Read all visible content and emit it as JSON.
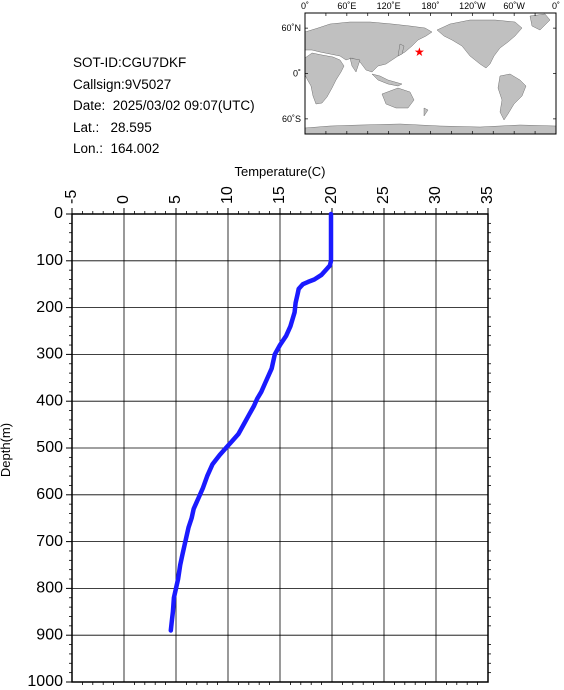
{
  "info": {
    "sot_id": "SOT-ID:CGU7DKF",
    "callsign": "Callsign:9V5027",
    "date": "Date:  2025/03/02 09:07(UTC)",
    "lat": "Lat.:   28.595",
    "lon": "Lon.:  164.002"
  },
  "map": {
    "top_labels": [
      "0˚",
      "60˚E",
      "120˚E",
      "180˚",
      "120˚W",
      "60˚W",
      "0˚"
    ],
    "left_labels": [
      "60˚N",
      "0˚",
      "60˚S"
    ],
    "lon_range": [
      0,
      360
    ],
    "lat_range": [
      -80,
      80
    ],
    "marker": {
      "lat": 28.595,
      "lon": 164.002,
      "symbol": "★",
      "color": "#ff0000"
    },
    "land_color": "#c0c0c0",
    "ocean_color": "#ffffff"
  },
  "chart_data": {
    "type": "line",
    "xlabel": "Temperature(C)",
    "ylabel": "Depth(m)",
    "xlim": [
      -5,
      35
    ],
    "ylim": [
      0,
      1000
    ],
    "y_inverted": true,
    "x_axis_position": "top",
    "grid": true,
    "x_ticks": [
      "-5",
      "0",
      "5",
      "10",
      "15",
      "20",
      "25",
      "30",
      "35"
    ],
    "y_ticks": [
      "0",
      "100",
      "200",
      "300",
      "400",
      "500",
      "600",
      "700",
      "800",
      "900",
      "1000"
    ],
    "line_color": "#1a1aff",
    "series": [
      {
        "x": [
          19.9,
          19.9,
          19.9,
          19.8,
          19.0,
          18.3,
          17.7,
          17.2,
          17.0,
          16.8,
          16.7,
          16.5,
          16.4,
          16.0,
          15.6,
          15.0,
          14.5,
          14.2,
          13.6,
          13.2,
          12.8,
          12.5,
          12.0,
          11.5,
          11.0,
          10.4,
          9.8,
          9.2,
          8.5,
          8.0,
          7.6,
          7.2,
          7.0,
          6.7,
          6.5,
          6.2,
          6.0,
          5.8,
          5.6,
          5.4,
          5.2,
          5.0,
          4.8,
          4.7,
          4.6,
          4.5
        ],
        "y": [
          0,
          50,
          100,
          110,
          130,
          140,
          145,
          150,
          155,
          160,
          170,
          190,
          210,
          240,
          260,
          280,
          300,
          330,
          360,
          380,
          395,
          410,
          430,
          450,
          470,
          485,
          500,
          515,
          535,
          560,
          585,
          605,
          615,
          630,
          650,
          670,
          690,
          710,
          730,
          750,
          780,
          800,
          820,
          850,
          870,
          890
        ]
      }
    ]
  }
}
